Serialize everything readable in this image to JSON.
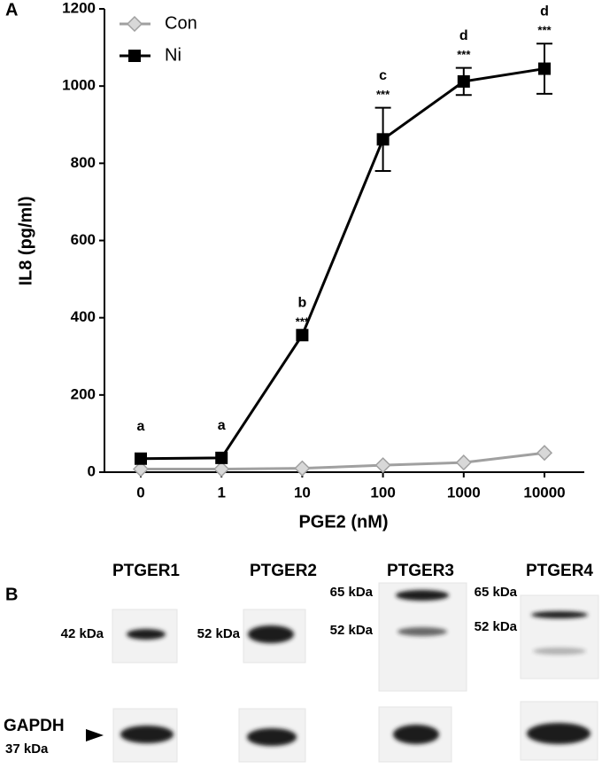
{
  "chart_data": {
    "type": "line",
    "panel_label": "A",
    "xlabel": "PGE2 (nM)",
    "ylabel": "IL8 (pg/ml)",
    "categories": [
      "0",
      "1",
      "10",
      "100",
      "1000",
      "10000"
    ],
    "series": [
      {
        "name": "Con",
        "color": "#a0a0a0",
        "marker": "diamond",
        "values": [
          8,
          8,
          10,
          18,
          25,
          50
        ]
      },
      {
        "name": "Ni",
        "color": "#000000",
        "marker": "square",
        "values": [
          35,
          37,
          355,
          862,
          1012,
          1045
        ],
        "errors": [
          null,
          null,
          null,
          82,
          35,
          65
        ],
        "letters": [
          "a",
          "a",
          "b",
          "c",
          "d",
          "d"
        ],
        "stars": [
          null,
          null,
          "***",
          "***",
          "***",
          "***"
        ]
      }
    ],
    "ylim": [
      0,
      1200
    ],
    "yticks": [
      0,
      200,
      400,
      600,
      800,
      1000,
      1200
    ]
  },
  "panel_b": {
    "label": "B",
    "targets": [
      {
        "name": "PTGER1",
        "bands": [
          "42 kDa"
        ]
      },
      {
        "name": "PTGER2",
        "bands": [
          "52 kDa"
        ]
      },
      {
        "name": "PTGER3",
        "bands": [
          "65 kDa",
          "52 kDa"
        ]
      },
      {
        "name": "PTGER4",
        "bands": [
          "65 kDa",
          "52 kDa"
        ]
      }
    ],
    "control": {
      "name": "GAPDH",
      "size": "37 kDa"
    }
  }
}
